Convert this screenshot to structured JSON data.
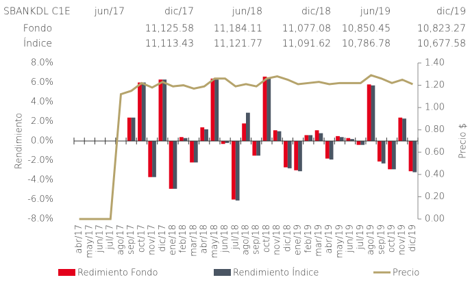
{
  "table": {
    "header": [
      "SBANKDL C1E",
      "jun/17",
      "dic/17",
      "jun/18",
      "dic/18",
      "jun/19",
      "dic/19"
    ],
    "rows": [
      [
        "Fondo",
        null,
        "11,125.58",
        "11,184.11",
        "11,077.08",
        "10,850.45",
        "10,823.27"
      ],
      [
        "Índice",
        null,
        "11,113.43",
        "11,121.77",
        "11,091.62",
        "10,786.78",
        "10,677.58"
      ]
    ]
  },
  "chart_data": {
    "type": "bar-line",
    "ylabel": "Rendimiento",
    "y2label": "Precio $",
    "categories": [
      "abr/17",
      "may/17",
      "jun/17",
      "jul/17",
      "ago/17",
      "sep/17",
      "oct/17",
      "nov/17",
      "dic/17",
      "ene/18",
      "feb/18",
      "mar/18",
      "abr/18",
      "may/18",
      "jun/18",
      "jul/18",
      "ago/18",
      "sep/18",
      "oct/18",
      "nov/18",
      "dic/18",
      "ene/19",
      "feb/19",
      "mar/19",
      "abr/19",
      "may/19",
      "jun/19",
      "jul/19",
      "ago/19",
      "sep/19",
      "oct/19",
      "nov/19",
      "dic/19"
    ],
    "series": [
      {
        "name": "Redimiento Fondo",
        "color": "#e3001b",
        "type": "bar",
        "values": [
          null,
          null,
          null,
          null,
          null,
          2.4,
          6.0,
          -3.7,
          6.3,
          -4.9,
          0.4,
          -2.2,
          1.4,
          6.4,
          -0.3,
          -6.0,
          1.8,
          -1.5,
          6.6,
          1.1,
          -2.7,
          -3.0,
          0.6,
          1.1,
          -1.8,
          0.5,
          0.3,
          -0.4,
          5.8,
          -2.1,
          -2.9,
          2.4,
          -3.1
        ]
      },
      {
        "name": "Rendimiento Índice",
        "color": "#4a5563",
        "type": "bar",
        "values": [
          null,
          null,
          null,
          null,
          null,
          2.4,
          6.0,
          -3.7,
          6.3,
          -4.9,
          0.3,
          -2.2,
          1.2,
          6.3,
          -0.2,
          -6.1,
          2.9,
          -1.5,
          6.5,
          1.0,
          -2.8,
          -3.1,
          0.6,
          0.8,
          -1.9,
          0.4,
          0.2,
          -0.4,
          5.7,
          -2.3,
          -2.9,
          2.3,
          -3.2
        ]
      },
      {
        "name": "Precio",
        "color": "#b5a36b",
        "type": "line",
        "axis": "y2",
        "values": [
          0,
          0,
          0,
          0,
          1.12,
          1.15,
          1.22,
          1.18,
          1.23,
          1.19,
          1.2,
          1.17,
          1.19,
          1.26,
          1.26,
          1.19,
          1.21,
          1.19,
          1.26,
          1.28,
          1.25,
          1.21,
          1.22,
          1.23,
          1.21,
          1.22,
          1.22,
          1.22,
          1.29,
          1.26,
          1.22,
          1.25,
          1.21
        ]
      }
    ],
    "ylim": [
      -8,
      8
    ],
    "yticks": [
      {
        "value": -8,
        "label": "-8.0%"
      },
      {
        "value": -6,
        "label": "-6.0%"
      },
      {
        "value": -4,
        "label": "-4.0%"
      },
      {
        "value": -2,
        "label": "-2.0%"
      },
      {
        "value": 0,
        "label": "0.0%"
      },
      {
        "value": 2,
        "label": "2.0%"
      },
      {
        "value": 4,
        "label": "4.0%"
      },
      {
        "value": 6,
        "label": "6.0%"
      },
      {
        "value": 8,
        "label": "8.0%"
      }
    ],
    "y2lim": [
      0,
      1.4
    ],
    "y2ticks": [
      {
        "value": 0,
        "label": "0.00"
      },
      {
        "value": 0.2,
        "label": "0.20"
      },
      {
        "value": 0.4,
        "label": "0.40"
      },
      {
        "value": 0.6,
        "label": "0.60"
      },
      {
        "value": 0.8,
        "label": "0.80"
      },
      {
        "value": 1,
        "label": "1.00"
      },
      {
        "value": 1.2,
        "label": "1.20"
      },
      {
        "value": 1.4,
        "label": "1.40"
      }
    ],
    "grid": false,
    "legend": "bottom"
  }
}
